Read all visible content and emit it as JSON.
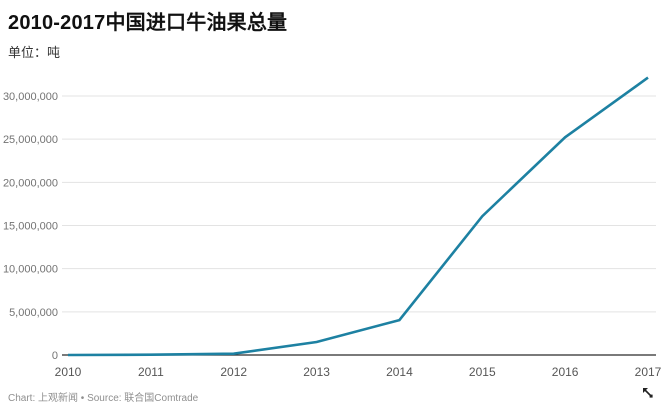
{
  "header": {
    "title": "2010-2017中国进口牛油果总量",
    "subtitle": "单位：吨"
  },
  "footer": {
    "text": "Chart: 上观新闻 • Source: 联合国Comtrade"
  },
  "colors": {
    "line": "#1d81a2",
    "grid": "#e3e3e3",
    "axis": "#2b2b2b",
    "y_tick_label": "#737373",
    "x_tick_label": "#565656",
    "title": "#111111",
    "footer": "#8f8f8f"
  },
  "icons": {
    "cursor": "resize-cursor-icon"
  },
  "chart_data": {
    "type": "line",
    "title": "2010-2017中国进口牛油果总量",
    "unit_label": "单位：吨",
    "categories": [
      "2010",
      "2011",
      "2012",
      "2013",
      "2014",
      "2015",
      "2016",
      "2017"
    ],
    "series": [
      {
        "name": "中国进口牛油果总量",
        "values": [
          1900,
          31800,
          154000,
          1505000,
          4040000,
          16074000,
          25220000,
          32127000
        ]
      }
    ],
    "y_ticks": {
      "values": [
        0,
        5000000,
        10000000,
        15000000,
        20000000,
        25000000,
        30000000
      ],
      "labels": [
        "0",
        "5,000,000",
        "10,000,000",
        "15,000,000",
        "20,000,000",
        "25,000,000",
        "30,000,000"
      ]
    },
    "xlabel": "",
    "ylabel": "",
    "axis_range_y": [
      0,
      30000000
    ],
    "grid": "horizontal",
    "legend": "none"
  }
}
